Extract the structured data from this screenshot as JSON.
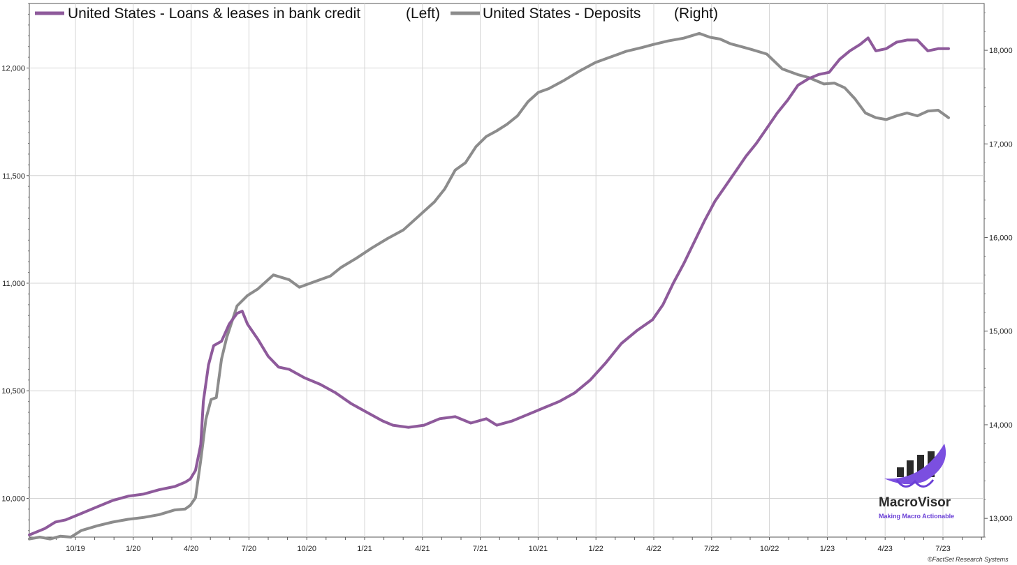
{
  "chart_data": {
    "type": "line",
    "title": "",
    "x_ticks": [
      "10/19",
      "1/20",
      "4/20",
      "7/20",
      "10/20",
      "1/21",
      "4/21",
      "7/21",
      "10/21",
      "1/22",
      "4/22",
      "7/22",
      "10/22",
      "1/23",
      "4/23",
      "7/23"
    ],
    "y_left": {
      "ylim": [
        9820,
        12300
      ],
      "ticks": [
        10000,
        10500,
        11000,
        11500,
        12000
      ],
      "tick_labels": [
        "10,000",
        "10,500",
        "11,000",
        "11,500",
        "12,000"
      ]
    },
    "y_right": {
      "ylim": [
        12800,
        18500
      ],
      "ticks": [
        13000,
        14000,
        15000,
        16000,
        17000,
        18000
      ],
      "tick_labels": [
        "13,000",
        "14,000",
        "15,000",
        "16,000",
        "17,000",
        "18,000"
      ]
    },
    "grid": true,
    "legend_position": "top-left",
    "series": [
      {
        "name": "United States - Loans & leases in bank credit",
        "axis_label": "(Left)",
        "axis": "left",
        "color": "#8e5a9b",
        "points": [
          [
            0.0,
            9830
          ],
          [
            0.3,
            9860
          ],
          [
            0.5,
            9890
          ],
          [
            0.7,
            9900
          ],
          [
            1.0,
            9930
          ],
          [
            1.3,
            9960
          ],
          [
            1.6,
            9990
          ],
          [
            1.9,
            10010
          ],
          [
            2.2,
            10020
          ],
          [
            2.5,
            10040
          ],
          [
            2.8,
            10055
          ],
          [
            3.0,
            10075
          ],
          [
            3.1,
            10090
          ],
          [
            3.2,
            10130
          ],
          [
            3.3,
            10250
          ],
          [
            3.35,
            10450
          ],
          [
            3.45,
            10620
          ],
          [
            3.55,
            10710
          ],
          [
            3.7,
            10730
          ],
          [
            3.85,
            10810
          ],
          [
            4.0,
            10860
          ],
          [
            4.1,
            10870
          ],
          [
            4.2,
            10810
          ],
          [
            4.4,
            10740
          ],
          [
            4.6,
            10660
          ],
          [
            4.8,
            10610
          ],
          [
            5.0,
            10600
          ],
          [
            5.3,
            10560
          ],
          [
            5.6,
            10530
          ],
          [
            5.9,
            10490
          ],
          [
            6.2,
            10440
          ],
          [
            6.5,
            10400
          ],
          [
            6.8,
            10360
          ],
          [
            7.0,
            10340
          ],
          [
            7.3,
            10330
          ],
          [
            7.6,
            10340
          ],
          [
            7.9,
            10370
          ],
          [
            8.2,
            10380
          ],
          [
            8.5,
            10350
          ],
          [
            8.8,
            10370
          ],
          [
            9.0,
            10340
          ],
          [
            9.3,
            10360
          ],
          [
            9.6,
            10390
          ],
          [
            9.9,
            10420
          ],
          [
            10.2,
            10450
          ],
          [
            10.5,
            10490
          ],
          [
            10.8,
            10550
          ],
          [
            11.1,
            10630
          ],
          [
            11.4,
            10720
          ],
          [
            11.7,
            10780
          ],
          [
            12.0,
            10830
          ],
          [
            12.2,
            10900
          ],
          [
            12.4,
            11000
          ],
          [
            12.6,
            11090
          ],
          [
            12.8,
            11190
          ],
          [
            13.0,
            11290
          ],
          [
            13.2,
            11380
          ],
          [
            13.4,
            11450
          ],
          [
            13.6,
            11520
          ],
          [
            13.8,
            11590
          ],
          [
            14.0,
            11650
          ],
          [
            14.2,
            11720
          ],
          [
            14.4,
            11790
          ],
          [
            14.6,
            11850
          ],
          [
            14.8,
            11920
          ],
          [
            15.0,
            11950
          ],
          [
            15.2,
            11970
          ],
          [
            15.4,
            11980
          ],
          [
            15.6,
            12040
          ],
          [
            15.8,
            12080
          ],
          [
            16.0,
            12110
          ],
          [
            16.15,
            12140
          ],
          [
            16.3,
            12080
          ],
          [
            16.5,
            12090
          ],
          [
            16.7,
            12120
          ],
          [
            16.9,
            12130
          ],
          [
            17.1,
            12130
          ],
          [
            17.3,
            12080
          ],
          [
            17.5,
            12090
          ],
          [
            17.7,
            12090
          ]
        ]
      },
      {
        "name": "United States - Deposits",
        "axis_label": "(Right)",
        "axis": "right",
        "color": "#8c8c8c",
        "points": [
          [
            0.0,
            12780
          ],
          [
            0.2,
            12800
          ],
          [
            0.4,
            12780
          ],
          [
            0.6,
            12810
          ],
          [
            0.8,
            12800
          ],
          [
            1.0,
            12870
          ],
          [
            1.3,
            12920
          ],
          [
            1.6,
            12960
          ],
          [
            1.9,
            12990
          ],
          [
            2.2,
            13010
          ],
          [
            2.5,
            13040
          ],
          [
            2.8,
            13090
          ],
          [
            3.0,
            13100
          ],
          [
            3.1,
            13140
          ],
          [
            3.2,
            13220
          ],
          [
            3.3,
            13620
          ],
          [
            3.4,
            14060
          ],
          [
            3.5,
            14270
          ],
          [
            3.6,
            14290
          ],
          [
            3.7,
            14700
          ],
          [
            3.8,
            14930
          ],
          [
            3.9,
            15100
          ],
          [
            4.0,
            15270
          ],
          [
            4.2,
            15380
          ],
          [
            4.4,
            15450
          ],
          [
            4.7,
            15600
          ],
          [
            5.0,
            15550
          ],
          [
            5.2,
            15470
          ],
          [
            5.5,
            15530
          ],
          [
            5.8,
            15590
          ],
          [
            6.0,
            15680
          ],
          [
            6.3,
            15780
          ],
          [
            6.6,
            15890
          ],
          [
            6.9,
            15990
          ],
          [
            7.2,
            16080
          ],
          [
            7.5,
            16230
          ],
          [
            7.8,
            16380
          ],
          [
            8.0,
            16520
          ],
          [
            8.2,
            16720
          ],
          [
            8.4,
            16800
          ],
          [
            8.6,
            16970
          ],
          [
            8.8,
            17080
          ],
          [
            9.0,
            17140
          ],
          [
            9.2,
            17210
          ],
          [
            9.4,
            17300
          ],
          [
            9.6,
            17450
          ],
          [
            9.8,
            17550
          ],
          [
            10.0,
            17590
          ],
          [
            10.3,
            17680
          ],
          [
            10.6,
            17780
          ],
          [
            10.9,
            17870
          ],
          [
            11.2,
            17930
          ],
          [
            11.5,
            17990
          ],
          [
            11.8,
            18030
          ],
          [
            12.0,
            18060
          ],
          [
            12.3,
            18100
          ],
          [
            12.6,
            18130
          ],
          [
            12.9,
            18180
          ],
          [
            13.1,
            18140
          ],
          [
            13.3,
            18120
          ],
          [
            13.5,
            18070
          ],
          [
            13.7,
            18040
          ],
          [
            13.9,
            18010
          ],
          [
            14.2,
            17960
          ],
          [
            14.5,
            17800
          ],
          [
            14.8,
            17740
          ],
          [
            15.0,
            17710
          ],
          [
            15.3,
            17640
          ],
          [
            15.5,
            17650
          ],
          [
            15.7,
            17600
          ],
          [
            15.9,
            17480
          ],
          [
            16.1,
            17330
          ],
          [
            16.3,
            17280
          ],
          [
            16.5,
            17260
          ],
          [
            16.7,
            17300
          ],
          [
            16.9,
            17330
          ],
          [
            17.1,
            17300
          ],
          [
            17.3,
            17350
          ],
          [
            17.5,
            17360
          ],
          [
            17.7,
            17280
          ]
        ]
      }
    ],
    "annotations": [
      {
        "type": "logo",
        "name": "MacroVisor",
        "tagline": "Making Macro Actionable"
      }
    ],
    "source": "©FactSet Research Systems"
  }
}
